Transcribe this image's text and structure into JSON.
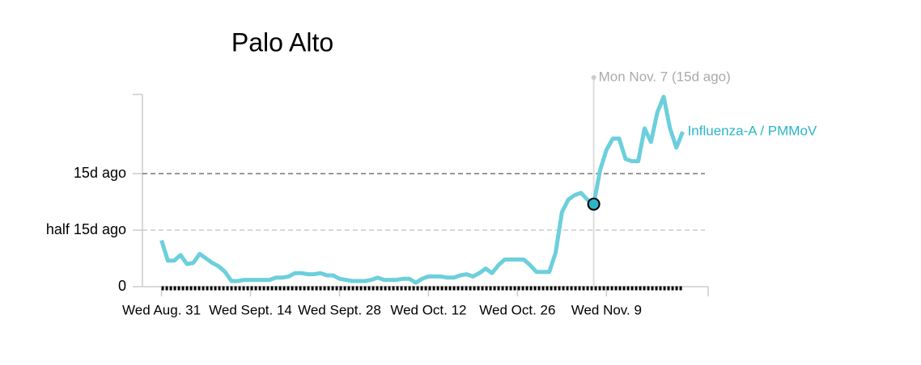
{
  "chart_data": {
    "type": "line",
    "title": "Palo Alto",
    "x": [
      "08-31",
      "09-01",
      "09-02",
      "09-03",
      "09-04",
      "09-05",
      "09-06",
      "09-07",
      "09-08",
      "09-09",
      "09-10",
      "09-11",
      "09-12",
      "09-13",
      "09-14",
      "09-15",
      "09-16",
      "09-17",
      "09-18",
      "09-19",
      "09-20",
      "09-21",
      "09-22",
      "09-23",
      "09-24",
      "09-25",
      "09-26",
      "09-27",
      "09-28",
      "09-29",
      "09-30",
      "10-01",
      "10-02",
      "10-03",
      "10-04",
      "10-05",
      "10-06",
      "10-07",
      "10-08",
      "10-09",
      "10-10",
      "10-11",
      "10-12",
      "10-13",
      "10-14",
      "10-15",
      "10-16",
      "10-17",
      "10-18",
      "10-19",
      "10-20",
      "10-21",
      "10-22",
      "10-23",
      "10-24",
      "10-25",
      "10-26",
      "10-27",
      "10-28",
      "10-29",
      "10-30",
      "10-31",
      "11-01",
      "11-02",
      "11-03",
      "11-04",
      "11-05",
      "11-06",
      "11-07",
      "11-08",
      "11-09",
      "11-10",
      "11-11",
      "11-12",
      "11-13",
      "11-14",
      "11-15",
      "11-16",
      "11-17",
      "11-18",
      "11-19",
      "11-20",
      "11-21"
    ],
    "series": [
      {
        "name": "Influenza-A / PMMoV",
        "color": "#6ccfdc",
        "label_color": "#2bb5c6",
        "values": [
          0.41,
          0.23,
          0.23,
          0.28,
          0.2,
          0.21,
          0.29,
          0.25,
          0.21,
          0.18,
          0.13,
          0.05,
          0.05,
          0.06,
          0.06,
          0.06,
          0.06,
          0.06,
          0.08,
          0.08,
          0.09,
          0.12,
          0.12,
          0.11,
          0.11,
          0.12,
          0.1,
          0.1,
          0.07,
          0.06,
          0.05,
          0.05,
          0.05,
          0.06,
          0.08,
          0.06,
          0.06,
          0.06,
          0.07,
          0.07,
          0.035,
          0.07,
          0.09,
          0.09,
          0.09,
          0.08,
          0.08,
          0.1,
          0.11,
          0.09,
          0.12,
          0.16,
          0.12,
          0.19,
          0.24,
          0.24,
          0.24,
          0.24,
          0.19,
          0.13,
          0.13,
          0.13,
          0.3,
          0.66,
          0.77,
          0.81,
          0.83,
          0.77,
          0.73,
          1.03,
          1.21,
          1.31,
          1.31,
          1.13,
          1.11,
          1.11,
          1.4,
          1.28,
          1.54,
          1.68,
          1.4,
          1.23,
          1.37
        ]
      }
    ],
    "xlim": [
      "08-28",
      "11-25"
    ],
    "xticks": [
      {
        "value": "08-31",
        "label": "Wed Aug. 31"
      },
      {
        "value": "09-14",
        "label": "Wed Sept. 14"
      },
      {
        "value": "09-28",
        "label": "Wed Sept. 28"
      },
      {
        "value": "10-12",
        "label": "Wed Oct. 12"
      },
      {
        "value": "10-26",
        "label": "Wed Oct. 26"
      },
      {
        "value": "11-09",
        "label": "Wed Nov. 9"
      }
    ],
    "ylim": [
      0,
      1.7
    ],
    "yticks": [
      0,
      {
        "value": 0.5,
        "label": "half 15d ago"
      },
      {
        "value": 1,
        "label": "15d ago"
      }
    ],
    "grid": true,
    "annotation": {
      "x": "11-07",
      "label": "Mon Nov. 7 (15d ago)"
    }
  }
}
